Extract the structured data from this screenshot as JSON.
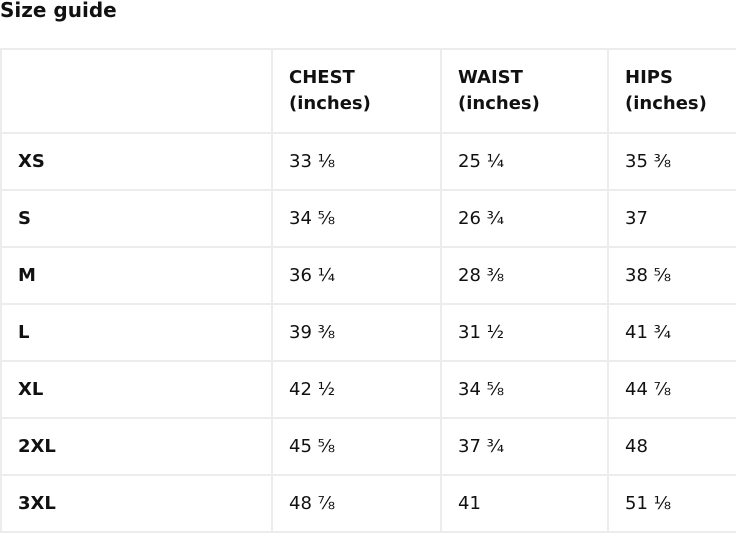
{
  "title": "Size guide",
  "table": {
    "headers": [
      "",
      "CHEST\n(inches)",
      "WAIST\n(inches)",
      "HIPS\n(inches)"
    ],
    "header_parts": [
      {
        "name": "",
        "unit": ""
      },
      {
        "name": "CHEST",
        "unit": "(inches)"
      },
      {
        "name": "WAIST",
        "unit": "(inches)"
      },
      {
        "name": "HIPS",
        "unit": "(inches)"
      }
    ],
    "rows": [
      [
        "XS",
        "33 ⅛",
        "25 ¼",
        "35 ⅜"
      ],
      [
        "S",
        "34 ⅝",
        "26 ¾",
        "37"
      ],
      [
        "M",
        "36 ¼",
        "28 ⅜",
        "38 ⅝"
      ],
      [
        "L",
        "39 ⅜",
        "31 ½",
        "41 ¾"
      ],
      [
        "XL",
        "42 ½",
        "34 ⅝",
        "44 ⅞"
      ],
      [
        "2XL",
        "45 ⅝",
        "37 ¾",
        "48"
      ],
      [
        "3XL",
        "48 ⅞",
        "41",
        "51 ⅛"
      ]
    ]
  }
}
